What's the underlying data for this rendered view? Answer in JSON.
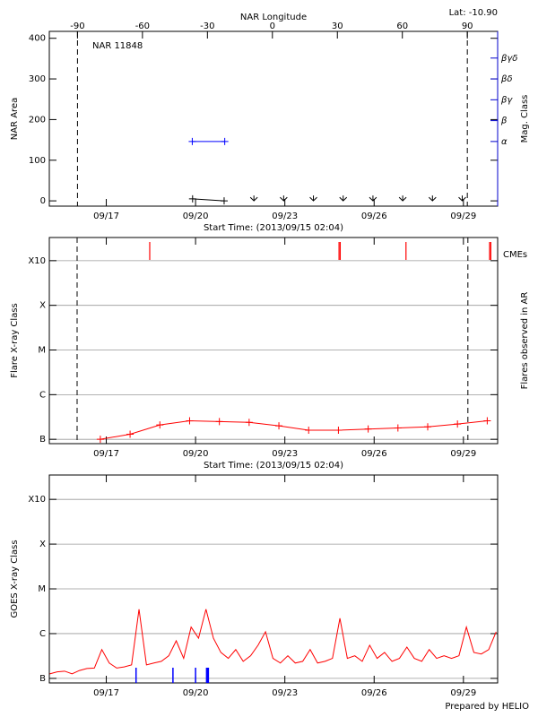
{
  "chart_data": [
    {
      "type": "line",
      "title": "NAR 11848",
      "annotation": "Lat: -10.90",
      "xlabel": "Start Time: (2013/09/15 02:04)",
      "x2label": "NAR Longitude",
      "ylabel": "NAR Area",
      "y2label": "Mag. Class",
      "xlim": [
        15.086,
        30.15
      ],
      "xticks": [
        {
          "value": 17,
          "label": "09/17"
        },
        {
          "value": 20,
          "label": "09/20"
        },
        {
          "value": 23,
          "label": "09/23"
        },
        {
          "value": 26,
          "label": "09/26"
        },
        {
          "value": 29,
          "label": "09/29"
        }
      ],
      "x2lim": [
        -103,
        104
      ],
      "x2ticks": [
        -90,
        -60,
        -30,
        0,
        30,
        60,
        90
      ],
      "ylim": [
        -13,
        417
      ],
      "yticks": [
        0,
        100,
        200,
        300,
        400
      ],
      "y2lim": [
        -2.1,
        6.28
      ],
      "y2ticks": [
        {
          "value": 1,
          "label": "α"
        },
        {
          "value": 2,
          "label": "β"
        },
        {
          "value": 3,
          "label": "βγ"
        },
        {
          "value": 4,
          "label": "βδ"
        },
        {
          "value": 5,
          "label": "βγδ"
        }
      ],
      "y2color": "#0000cc",
      "dashed_x2": [
        -90,
        90
      ],
      "grid": false,
      "series": [
        {
          "color": "#0000ff",
          "axis": "y2",
          "xaxis": "x2",
          "x": [
            -37,
            -22
          ],
          "values": [
            1,
            1
          ],
          "marker": "plus",
          "line": true
        },
        {
          "color": "#000000",
          "x": [
            19.9,
            20.96
          ],
          "values": [
            5,
            0
          ],
          "marker": "plus",
          "line": true
        },
        {
          "color": "#000000",
          "x": [
            21.96,
            22.96,
            23.96,
            24.96,
            25.96,
            26.96,
            27.96,
            28.96
          ],
          "values": [
            0,
            0,
            0,
            0,
            0,
            0,
            0,
            0
          ],
          "marker": "arrow",
          "line": false
        }
      ]
    },
    {
      "type": "line",
      "xlabel": "Start Time: (2013/09/15 02:04)",
      "ylabel": "Flare X-ray Class",
      "y2label": "Flares observed in AR",
      "xlim": [
        15.086,
        30.15
      ],
      "xticks": [
        {
          "value": 17,
          "label": "09/17"
        },
        {
          "value": 20,
          "label": "09/20"
        },
        {
          "value": 23,
          "label": "09/23"
        },
        {
          "value": 26,
          "label": "09/26"
        },
        {
          "value": 29,
          "label": "09/29"
        }
      ],
      "ylim": [
        8e-08,
        0.0033
      ],
      "log_y": true,
      "grid": true,
      "yticks": [
        {
          "value": 1e-07,
          "label": "B"
        },
        {
          "value": 1e-06,
          "label": "C"
        },
        {
          "value": 1e-05,
          "label": "M"
        },
        {
          "value": 0.0001,
          "label": "X"
        },
        {
          "value": 0.001,
          "label": "X10"
        }
      ],
      "dashed_x": [
        16.02,
        29.15
      ],
      "events": {
        "name": "CMEs",
        "color": "#ff0000",
        "x": [
          18.46,
          24.82,
          24.86,
          27.07,
          29.88,
          29.92
        ]
      },
      "series": [
        {
          "color": "#ff0000",
          "x": [
            16.8,
            17.8,
            18.8,
            19.8,
            20.8,
            21.8,
            22.8,
            23.8,
            24.8,
            25.8,
            26.8,
            27.8,
            28.8,
            29.8
          ],
          "values": [
            1e-07,
            1.3e-07,
            2.1e-07,
            2.6e-07,
            2.5e-07,
            2.4e-07,
            2e-07,
            1.6e-07,
            1.6e-07,
            1.7e-07,
            1.8e-07,
            1.9e-07,
            2.2e-07,
            2.6e-07
          ],
          "marker": "plus",
          "line": true
        }
      ]
    },
    {
      "type": "line",
      "ylabel": "GOES X-ray Class",
      "footer": "Prepared by HELIO",
      "xlim": [
        15.086,
        30.15
      ],
      "xticks": [
        {
          "value": 17,
          "label": "09/17"
        },
        {
          "value": 20,
          "label": "09/20"
        },
        {
          "value": 23,
          "label": "09/23"
        },
        {
          "value": 26,
          "label": "09/26"
        },
        {
          "value": 29,
          "label": "09/29"
        }
      ],
      "ylim": [
        7.9e-08,
        0.0035
      ],
      "log_y": true,
      "grid": true,
      "yticks": [
        {
          "value": 1e-07,
          "label": "B"
        },
        {
          "value": 1e-06,
          "label": "C"
        },
        {
          "value": 1e-05,
          "label": "M"
        },
        {
          "value": 0.0001,
          "label": "X"
        },
        {
          "value": 0.001,
          "label": "X10"
        }
      ],
      "flare_marks": {
        "color": "#0000ff",
        "x": [
          18.0,
          19.24,
          20.0,
          20.37,
          20.4,
          20.43
        ]
      },
      "series": [
        {
          "color": "#ff0000",
          "marker": null,
          "line": true,
          "x": [
            15.1,
            15.35,
            15.6,
            15.85,
            16.1,
            16.35,
            16.6,
            16.85,
            17.1,
            17.35,
            17.6,
            17.85,
            18.1,
            18.35,
            18.6,
            18.85,
            19.1,
            19.35,
            19.6,
            19.85,
            20.1,
            20.35,
            20.6,
            20.85,
            21.1,
            21.35,
            21.6,
            21.85,
            22.1,
            22.35,
            22.6,
            22.85,
            23.1,
            23.35,
            23.6,
            23.85,
            24.1,
            24.35,
            24.6,
            24.85,
            25.1,
            25.35,
            25.6,
            25.85,
            26.1,
            26.35,
            26.6,
            26.85,
            27.1,
            27.35,
            27.6,
            27.85,
            28.1,
            28.35,
            28.6,
            28.85,
            29.1,
            29.35,
            29.6,
            29.85,
            30.1
          ],
          "values": [
            1.26e-07,
            1.4e-07,
            1.45e-07,
            1.26e-07,
            1.5e-07,
            1.66e-07,
            1.7e-07,
            4.4e-07,
            2.2e-07,
            1.7e-07,
            1.8e-07,
            2e-07,
            3.5e-06,
            2e-07,
            2.2e-07,
            2.4e-07,
            3.2e-07,
            6.9e-07,
            2.8e-07,
            1.4e-06,
            7.9e-07,
            3.5e-06,
            7.9e-07,
            3.8e-07,
            2.8e-07,
            4.4e-07,
            2.4e-07,
            3.2e-07,
            5.5e-07,
            1.1e-06,
            2.8e-07,
            2.2e-07,
            3.2e-07,
            2.2e-07,
            2.4e-07,
            4.4e-07,
            2.2e-07,
            2.4e-07,
            2.8e-07,
            2.2e-06,
            2.8e-07,
            3.2e-07,
            2.4e-07,
            5.5e-07,
            2.8e-07,
            3.8e-07,
            2.4e-07,
            2.8e-07,
            5e-07,
            2.8e-07,
            2.4e-07,
            4.4e-07,
            2.8e-07,
            3.2e-07,
            2.8e-07,
            3.2e-07,
            1.4e-06,
            3.8e-07,
            3.5e-07,
            4.4e-07,
            1.1e-06
          ]
        }
      ]
    }
  ]
}
